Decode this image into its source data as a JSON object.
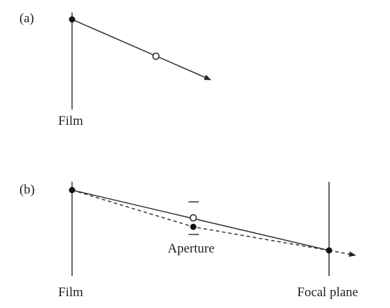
{
  "panel_a": {
    "tag": "(a)",
    "film_label": "Film"
  },
  "panel_b": {
    "tag": "(b)",
    "film_label": "Film",
    "aperture_label": "Aperture",
    "focal_plane_label": "Focal plane"
  },
  "colors": {
    "ink": "#222222",
    "background": "#ffffff"
  }
}
